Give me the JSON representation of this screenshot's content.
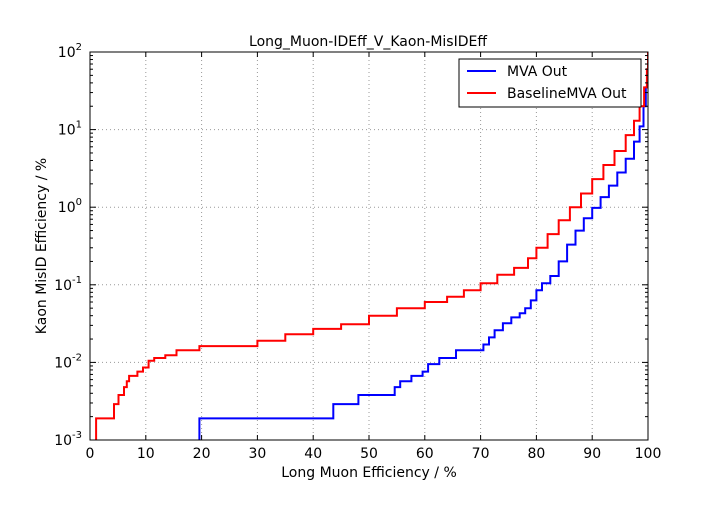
{
  "chart_data": {
    "type": "line",
    "title": "Long_Muon-IDEff_V_Kaon-MisIDEff",
    "xlabel": "Long Muon Efficiency / %",
    "ylabel": "Kaon MisID Efficiency / %",
    "xlim": [
      0,
      100
    ],
    "ylim": [
      0.001,
      100
    ],
    "yscale": "log",
    "grid": true,
    "legend_position": "top-right",
    "x_ticks": [
      0,
      10,
      20,
      30,
      40,
      50,
      60,
      70,
      80,
      90,
      100
    ],
    "x_tick_labels": [
      "0",
      "10",
      "20",
      "30",
      "40",
      "50",
      "60",
      "70",
      "80",
      "90",
      "100"
    ],
    "y_ticks": [
      0.001,
      0.01,
      0.1,
      1,
      10,
      100
    ],
    "y_tick_labels": [
      {
        "base": "10",
        "exp": "-3"
      },
      {
        "base": "10",
        "exp": "-2"
      },
      {
        "base": "10",
        "exp": "-1"
      },
      {
        "base": "10",
        "exp": "0"
      },
      {
        "base": "10",
        "exp": "1"
      },
      {
        "base": "10",
        "exp": "2"
      }
    ],
    "series": [
      {
        "name": "MVA Out",
        "color": "#0000ff",
        "step": true,
        "points": [
          [
            18.0,
            0.00095
          ],
          [
            19.5,
            0.00095
          ],
          [
            19.6,
            0.0019
          ],
          [
            43.5,
            0.0019
          ],
          [
            43.6,
            0.0029
          ],
          [
            48.0,
            0.0029
          ],
          [
            48.1,
            0.0038
          ],
          [
            54.5,
            0.0038
          ],
          [
            54.6,
            0.0048
          ],
          [
            55.5,
            0.0048
          ],
          [
            55.6,
            0.0057
          ],
          [
            57.5,
            0.0057
          ],
          [
            57.6,
            0.0067
          ],
          [
            59.5,
            0.0067
          ],
          [
            59.6,
            0.0076
          ],
          [
            60.5,
            0.0076
          ],
          [
            60.6,
            0.0095
          ],
          [
            62.5,
            0.0095
          ],
          [
            62.6,
            0.0114
          ],
          [
            65.5,
            0.0114
          ],
          [
            65.6,
            0.0143
          ],
          [
            69.5,
            0.0143
          ],
          [
            70.5,
            0.017
          ],
          [
            71.5,
            0.021
          ],
          [
            72.5,
            0.026
          ],
          [
            74.0,
            0.032
          ],
          [
            75.5,
            0.038
          ],
          [
            77.0,
            0.043
          ],
          [
            78.0,
            0.05
          ],
          [
            79.0,
            0.063
          ],
          [
            80.0,
            0.085
          ],
          [
            81.0,
            0.105
          ],
          [
            82.5,
            0.13
          ],
          [
            84.0,
            0.2
          ],
          [
            85.5,
            0.33
          ],
          [
            87.0,
            0.5
          ],
          [
            88.5,
            0.72
          ],
          [
            90.0,
            0.98
          ],
          [
            91.5,
            1.35
          ],
          [
            93.0,
            1.9
          ],
          [
            94.5,
            2.8
          ],
          [
            96.0,
            4.2
          ],
          [
            97.5,
            7.0
          ],
          [
            98.5,
            11.0
          ],
          [
            99.2,
            20.0
          ],
          [
            99.6,
            35.0
          ],
          [
            100.0,
            70.0
          ]
        ]
      },
      {
        "name": "BaselineMVA Out",
        "color": "#ff0000",
        "step": true,
        "points": [
          [
            1.0,
            0.00095
          ],
          [
            1.1,
            0.0019
          ],
          [
            4.2,
            0.0019
          ],
          [
            4.3,
            0.0029
          ],
          [
            5.0,
            0.0029
          ],
          [
            5.1,
            0.0038
          ],
          [
            6.0,
            0.0038
          ],
          [
            6.1,
            0.0048
          ],
          [
            6.5,
            0.0048
          ],
          [
            6.6,
            0.0057
          ],
          [
            7.0,
            0.0067
          ],
          [
            8.5,
            0.0076
          ],
          [
            9.5,
            0.0086
          ],
          [
            10.5,
            0.0105
          ],
          [
            11.5,
            0.0114
          ],
          [
            13.5,
            0.0124
          ],
          [
            15.5,
            0.0143
          ],
          [
            19.5,
            0.0143
          ],
          [
            19.6,
            0.0162
          ],
          [
            30.0,
            0.019
          ],
          [
            35.0,
            0.023
          ],
          [
            40.0,
            0.027
          ],
          [
            45.0,
            0.031
          ],
          [
            50.0,
            0.04
          ],
          [
            55.0,
            0.05
          ],
          [
            60.0,
            0.06
          ],
          [
            64.0,
            0.07
          ],
          [
            67.0,
            0.085
          ],
          [
            70.0,
            0.105
          ],
          [
            73.0,
            0.135
          ],
          [
            76.0,
            0.165
          ],
          [
            78.5,
            0.22
          ],
          [
            80.0,
            0.3
          ],
          [
            82.0,
            0.45
          ],
          [
            84.0,
            0.68
          ],
          [
            86.0,
            1.0
          ],
          [
            88.0,
            1.5
          ],
          [
            90.0,
            2.3
          ],
          [
            92.0,
            3.5
          ],
          [
            94.0,
            5.3
          ],
          [
            96.0,
            8.5
          ],
          [
            97.5,
            13.0
          ],
          [
            98.5,
            20.0
          ],
          [
            99.3,
            35.0
          ],
          [
            99.8,
            60.0
          ],
          [
            100.0,
            100.0
          ]
        ]
      }
    ]
  }
}
